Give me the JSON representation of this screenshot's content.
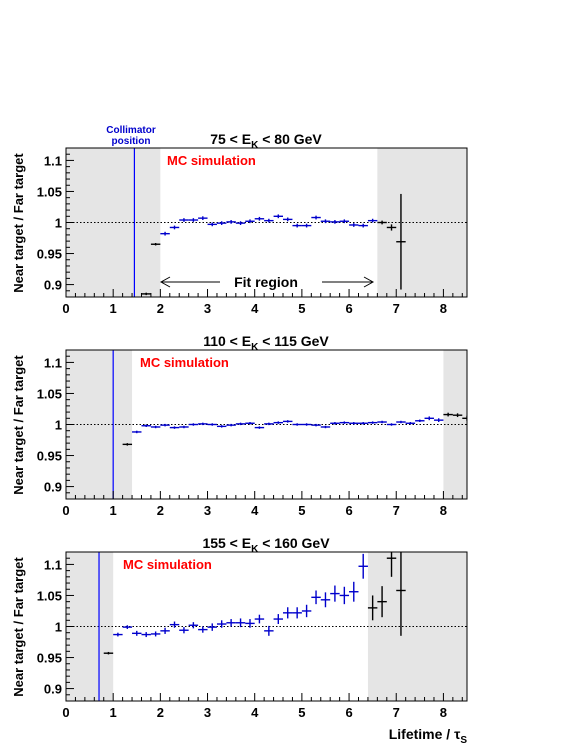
{
  "colors": {
    "blue": "#0000cc",
    "black": "#000000",
    "mc_red": "#ff0000",
    "shade": "#e5e5e5",
    "collimator": "#0000ff"
  },
  "x_label_main": "Lifetime / ",
  "x_label_sym": "τ",
  "x_label_sub": "S",
  "ylabel": "Near target / Far target",
  "x_ticks": [
    "0",
    "1",
    "2",
    "3",
    "4",
    "5",
    "6",
    "7",
    "8"
  ],
  "y_ticks": [
    "1.1",
    "1.05",
    "1",
    "0.95",
    "0.9"
  ],
  "collimator_label_1": "Collimator",
  "collimator_label_2": "position",
  "fit_region_label": "Fit region",
  "mc_label": "MC simulation",
  "chart_data": [
    {
      "type": "scatter",
      "title_main": "75 < E",
      "title_sub": "K",
      "title_rest": " < 80 GeV",
      "xlim": [
        0,
        8.5
      ],
      "ylim": [
        0.88,
        1.12
      ],
      "grid": false,
      "reference_line": 1.0,
      "shaded_regions": [
        [
          0,
          2.0
        ],
        [
          6.6,
          8.5
        ]
      ],
      "collimator_position": 1.45,
      "fit_region": [
        2.0,
        6.6
      ],
      "points": [
        {
          "x": 1.7,
          "y": 0.885,
          "ye": 0.002,
          "s": "black"
        },
        {
          "x": 1.9,
          "y": 0.965,
          "ye": 0.002,
          "s": "black"
        },
        {
          "x": 2.1,
          "y": 0.982,
          "ye": 0.003,
          "s": "blue"
        },
        {
          "x": 2.3,
          "y": 0.992,
          "ye": 0.003,
          "s": "blue"
        },
        {
          "x": 2.5,
          "y": 1.004,
          "ye": 0.003,
          "s": "blue"
        },
        {
          "x": 2.7,
          "y": 1.004,
          "ye": 0.003,
          "s": "blue"
        },
        {
          "x": 2.9,
          "y": 1.007,
          "ye": 0.003,
          "s": "blue"
        },
        {
          "x": 3.1,
          "y": 0.997,
          "ye": 0.003,
          "s": "blue"
        },
        {
          "x": 3.3,
          "y": 0.999,
          "ye": 0.003,
          "s": "blue"
        },
        {
          "x": 3.5,
          "y": 1.001,
          "ye": 0.003,
          "s": "blue"
        },
        {
          "x": 3.7,
          "y": 0.999,
          "ye": 0.003,
          "s": "blue"
        },
        {
          "x": 3.9,
          "y": 1.002,
          "ye": 0.003,
          "s": "blue"
        },
        {
          "x": 4.1,
          "y": 1.006,
          "ye": 0.003,
          "s": "blue"
        },
        {
          "x": 4.3,
          "y": 1.003,
          "ye": 0.003,
          "s": "blue"
        },
        {
          "x": 4.5,
          "y": 1.01,
          "ye": 0.003,
          "s": "blue"
        },
        {
          "x": 4.7,
          "y": 1.005,
          "ye": 0.003,
          "s": "blue"
        },
        {
          "x": 4.9,
          "y": 0.995,
          "ye": 0.003,
          "s": "blue"
        },
        {
          "x": 5.1,
          "y": 0.995,
          "ye": 0.003,
          "s": "blue"
        },
        {
          "x": 5.3,
          "y": 1.008,
          "ye": 0.003,
          "s": "blue"
        },
        {
          "x": 5.5,
          "y": 1.002,
          "ye": 0.003,
          "s": "blue"
        },
        {
          "x": 5.7,
          "y": 1.001,
          "ye": 0.003,
          "s": "blue"
        },
        {
          "x": 5.9,
          "y": 1.002,
          "ye": 0.003,
          "s": "blue"
        },
        {
          "x": 6.1,
          "y": 0.996,
          "ye": 0.003,
          "s": "blue"
        },
        {
          "x": 6.3,
          "y": 0.995,
          "ye": 0.003,
          "s": "blue"
        },
        {
          "x": 6.5,
          "y": 1.003,
          "ye": 0.003,
          "s": "blue"
        },
        {
          "x": 6.7,
          "y": 1.0,
          "ye": 0.003,
          "s": "black"
        },
        {
          "x": 6.9,
          "y": 0.992,
          "ye": 0.005,
          "s": "black"
        },
        {
          "x": 7.1,
          "y": 0.969,
          "ye": 0.077,
          "s": "black"
        }
      ]
    },
    {
      "type": "scatter",
      "title_main": "110 < E",
      "title_sub": "K",
      "title_rest": " < 115 GeV",
      "xlim": [
        0,
        8.5
      ],
      "ylim": [
        0.88,
        1.12
      ],
      "grid": false,
      "reference_line": 1.0,
      "shaded_regions": [
        [
          0,
          1.4
        ],
        [
          8.0,
          8.5
        ]
      ],
      "collimator_position": 1.0,
      "points": [
        {
          "x": 1.3,
          "y": 0.968,
          "ye": 0.002,
          "s": "black"
        },
        {
          "x": 1.5,
          "y": 0.988,
          "ye": 0.002,
          "s": "blue"
        },
        {
          "x": 1.7,
          "y": 0.998,
          "ye": 0.002,
          "s": "blue"
        },
        {
          "x": 1.9,
          "y": 0.996,
          "ye": 0.002,
          "s": "blue"
        },
        {
          "x": 2.1,
          "y": 0.999,
          "ye": 0.002,
          "s": "blue"
        },
        {
          "x": 2.3,
          "y": 0.995,
          "ye": 0.002,
          "s": "blue"
        },
        {
          "x": 2.5,
          "y": 0.996,
          "ye": 0.002,
          "s": "blue"
        },
        {
          "x": 2.7,
          "y": 1.0,
          "ye": 0.002,
          "s": "blue"
        },
        {
          "x": 2.9,
          "y": 1.001,
          "ye": 0.002,
          "s": "blue"
        },
        {
          "x": 3.1,
          "y": 1.0,
          "ye": 0.002,
          "s": "blue"
        },
        {
          "x": 3.3,
          "y": 0.997,
          "ye": 0.002,
          "s": "blue"
        },
        {
          "x": 3.5,
          "y": 0.999,
          "ye": 0.002,
          "s": "blue"
        },
        {
          "x": 3.7,
          "y": 1.001,
          "ye": 0.002,
          "s": "blue"
        },
        {
          "x": 3.9,
          "y": 1.002,
          "ye": 0.002,
          "s": "blue"
        },
        {
          "x": 4.1,
          "y": 0.995,
          "ye": 0.002,
          "s": "blue"
        },
        {
          "x": 4.3,
          "y": 1.001,
          "ye": 0.002,
          "s": "blue"
        },
        {
          "x": 4.5,
          "y": 1.003,
          "ye": 0.002,
          "s": "blue"
        },
        {
          "x": 4.7,
          "y": 1.005,
          "ye": 0.002,
          "s": "blue"
        },
        {
          "x": 4.9,
          "y": 1.0,
          "ye": 0.002,
          "s": "blue"
        },
        {
          "x": 5.1,
          "y": 1.0,
          "ye": 0.002,
          "s": "blue"
        },
        {
          "x": 5.3,
          "y": 0.999,
          "ye": 0.002,
          "s": "blue"
        },
        {
          "x": 5.5,
          "y": 0.996,
          "ye": 0.002,
          "s": "blue"
        },
        {
          "x": 5.7,
          "y": 1.002,
          "ye": 0.002,
          "s": "blue"
        },
        {
          "x": 5.9,
          "y": 1.003,
          "ye": 0.002,
          "s": "blue"
        },
        {
          "x": 6.1,
          "y": 1.002,
          "ye": 0.002,
          "s": "blue"
        },
        {
          "x": 6.3,
          "y": 1.002,
          "ye": 0.002,
          "s": "blue"
        },
        {
          "x": 6.5,
          "y": 1.003,
          "ye": 0.002,
          "s": "blue"
        },
        {
          "x": 6.7,
          "y": 1.004,
          "ye": 0.002,
          "s": "blue"
        },
        {
          "x": 6.9,
          "y": 1.0,
          "ye": 0.002,
          "s": "blue"
        },
        {
          "x": 7.1,
          "y": 1.004,
          "ye": 0.002,
          "s": "blue"
        },
        {
          "x": 7.3,
          "y": 1.002,
          "ye": 0.002,
          "s": "blue"
        },
        {
          "x": 7.5,
          "y": 1.006,
          "ye": 0.002,
          "s": "blue"
        },
        {
          "x": 7.7,
          "y": 1.01,
          "ye": 0.003,
          "s": "blue"
        },
        {
          "x": 7.9,
          "y": 1.007,
          "ye": 0.003,
          "s": "blue"
        },
        {
          "x": 8.1,
          "y": 1.016,
          "ye": 0.003,
          "s": "black"
        },
        {
          "x": 8.3,
          "y": 1.015,
          "ye": 0.003,
          "s": "black"
        },
        {
          "x": 8.5,
          "y": 1.01,
          "ye": 0.004,
          "s": "black"
        }
      ]
    },
    {
      "type": "scatter",
      "title_main": "155 < E",
      "title_sub": "K",
      "title_rest": " < 160 GeV",
      "xlim": [
        0,
        8.5
      ],
      "ylim": [
        0.88,
        1.12
      ],
      "grid": false,
      "reference_line": 1.0,
      "shaded_regions": [
        [
          0,
          1.0
        ],
        [
          6.4,
          8.5
        ]
      ],
      "collimator_position": 0.7,
      "points": [
        {
          "x": 0.9,
          "y": 0.957,
          "ye": 0.002,
          "s": "black"
        },
        {
          "x": 1.1,
          "y": 0.987,
          "ye": 0.003,
          "s": "blue"
        },
        {
          "x": 1.3,
          "y": 0.999,
          "ye": 0.003,
          "s": "blue"
        },
        {
          "x": 1.5,
          "y": 0.989,
          "ye": 0.004,
          "s": "blue"
        },
        {
          "x": 1.7,
          "y": 0.987,
          "ye": 0.004,
          "s": "blue"
        },
        {
          "x": 1.9,
          "y": 0.988,
          "ye": 0.004,
          "s": "blue"
        },
        {
          "x": 2.1,
          "y": 0.993,
          "ye": 0.005,
          "s": "blue"
        },
        {
          "x": 2.3,
          "y": 1.003,
          "ye": 0.005,
          "s": "blue"
        },
        {
          "x": 2.5,
          "y": 0.994,
          "ye": 0.005,
          "s": "blue"
        },
        {
          "x": 2.7,
          "y": 1.002,
          "ye": 0.005,
          "s": "blue"
        },
        {
          "x": 2.9,
          "y": 0.995,
          "ye": 0.005,
          "s": "blue"
        },
        {
          "x": 3.1,
          "y": 0.999,
          "ye": 0.006,
          "s": "blue"
        },
        {
          "x": 3.3,
          "y": 1.004,
          "ye": 0.006,
          "s": "blue"
        },
        {
          "x": 3.5,
          "y": 1.006,
          "ye": 0.006,
          "s": "blue"
        },
        {
          "x": 3.7,
          "y": 1.006,
          "ye": 0.007,
          "s": "blue"
        },
        {
          "x": 3.9,
          "y": 1.005,
          "ye": 0.007,
          "s": "blue"
        },
        {
          "x": 4.1,
          "y": 1.012,
          "ye": 0.007,
          "s": "blue"
        },
        {
          "x": 4.3,
          "y": 0.993,
          "ye": 0.008,
          "s": "blue"
        },
        {
          "x": 4.5,
          "y": 1.012,
          "ye": 0.008,
          "s": "blue"
        },
        {
          "x": 4.7,
          "y": 1.022,
          "ye": 0.009,
          "s": "blue"
        },
        {
          "x": 4.9,
          "y": 1.022,
          "ye": 0.009,
          "s": "blue"
        },
        {
          "x": 5.1,
          "y": 1.025,
          "ye": 0.01,
          "s": "blue"
        },
        {
          "x": 5.3,
          "y": 1.047,
          "ye": 0.011,
          "s": "blue"
        },
        {
          "x": 5.5,
          "y": 1.043,
          "ye": 0.012,
          "s": "blue"
        },
        {
          "x": 5.7,
          "y": 1.053,
          "ye": 0.013,
          "s": "blue"
        },
        {
          "x": 5.9,
          "y": 1.05,
          "ye": 0.014,
          "s": "blue"
        },
        {
          "x": 6.1,
          "y": 1.056,
          "ye": 0.016,
          "s": "blue"
        },
        {
          "x": 6.3,
          "y": 1.097,
          "ye": 0.02,
          "s": "blue"
        },
        {
          "x": 6.5,
          "y": 1.03,
          "ye": 0.02,
          "s": "black"
        },
        {
          "x": 6.7,
          "y": 1.04,
          "ye": 0.025,
          "s": "black"
        },
        {
          "x": 6.9,
          "y": 1.11,
          "ye": 0.03,
          "s": "black"
        },
        {
          "x": 7.1,
          "y": 1.058,
          "ye": 0.073,
          "s": "black"
        }
      ]
    }
  ]
}
